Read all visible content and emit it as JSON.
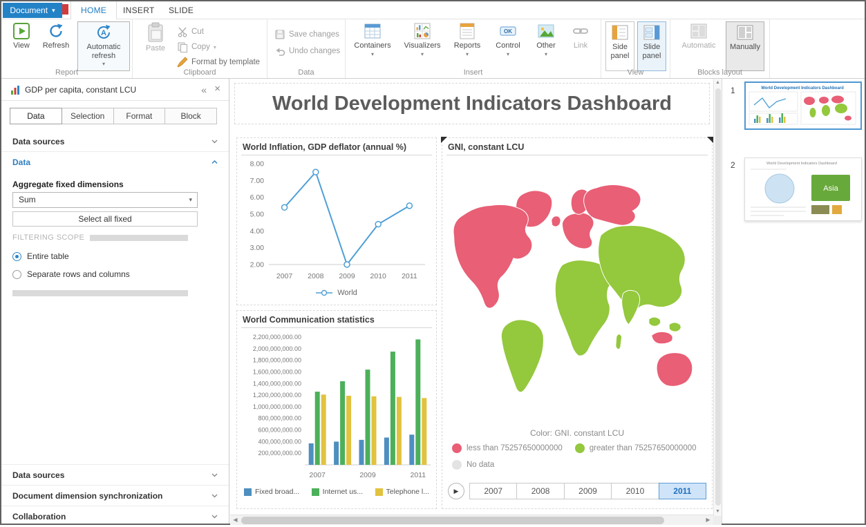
{
  "icons": {
    "dropdown": "▾",
    "collapse": "«",
    "close": "×",
    "play": "▶",
    "scroll_up": "▲",
    "scroll_down": "▼",
    "scroll_left": "◀",
    "scroll_right": "▶"
  },
  "menubar": {
    "document_button": "Document",
    "tabs": [
      {
        "label": "HOME",
        "active": true
      },
      {
        "label": "INSERT",
        "active": false
      },
      {
        "label": "SLIDE",
        "active": false
      }
    ]
  },
  "ribbon": {
    "groups": {
      "report": {
        "label": "Report",
        "view": "View",
        "refresh": "Refresh",
        "automatic_refresh": "Automatic refresh"
      },
      "clipboard": {
        "label": "Clipboard",
        "paste": "Paste",
        "cut": "Cut",
        "copy": "Copy",
        "format_by_template": "Format by template"
      },
      "data": {
        "label": "Data",
        "save_changes": "Save changes",
        "undo_changes": "Undo changes"
      },
      "insert": {
        "label": "Insert",
        "containers": "Containers",
        "visualizers": "Visualizers",
        "reports": "Reports",
        "control": "Control",
        "other": "Other",
        "link": "Link"
      },
      "view": {
        "label": "View",
        "side_panel": "Side panel",
        "slide_panel": "Slide panel"
      },
      "blocks_layout": {
        "label": "Blocks layout",
        "automatic": "Automatic",
        "manually": "Manually"
      }
    }
  },
  "sidebar": {
    "title": "GDP per capita, constant LCU",
    "tabs": [
      {
        "label": "Data",
        "active": true
      },
      {
        "label": "Selection",
        "active": false
      },
      {
        "label": "Format",
        "active": false
      },
      {
        "label": "Block",
        "active": false
      }
    ],
    "data_sources_top": "Data sources",
    "data_section": "Data",
    "aggregate_label": "Aggregate fixed dimensions",
    "aggregate_value": "Sum",
    "select_all_fixed": "Select all fixed",
    "filtering_scope": "FILTERING SCOPE",
    "radio_entire_table": "Entire table",
    "radio_separate": "Separate rows and columns",
    "data_sources_bottom": "Data sources",
    "document_dimension_sync": "Document dimension synchronization",
    "collaboration": "Collaboration"
  },
  "main": {
    "title": "World Development Indicators Dashboard"
  },
  "slides": [
    {
      "number": "1",
      "selected": true
    },
    {
      "number": "2",
      "selected": false,
      "label": "Asia"
    }
  ],
  "colors": {
    "accent_blue": "#1f7dc2",
    "map_less": "#e85f76",
    "map_greater": "#94c83d",
    "map_nodata": "#e3e3e3",
    "line_blue": "#4e9fd6",
    "bar_blue": "#4e8fc0",
    "bar_green": "#4cb05a",
    "bar_yellow": "#e2c23f"
  },
  "chart_data": [
    {
      "type": "line",
      "title": "World Inflation, GDP deflator (annual %)",
      "x": [
        "2007",
        "2008",
        "2009",
        "2010",
        "2011"
      ],
      "series": [
        {
          "name": "World",
          "color": "#4e9fd6",
          "values": [
            5.4,
            7.5,
            2.0,
            4.4,
            5.5
          ]
        }
      ],
      "ylim": [
        2,
        8
      ],
      "ytick_step": 1,
      "grid": false,
      "legend_position": "bottom"
    },
    {
      "type": "bar",
      "title": "World Communication statistics",
      "categories": [
        "2007",
        "2008",
        "2009",
        "2010",
        "2011"
      ],
      "visible_x_labels": [
        "2007",
        "2009",
        "2011"
      ],
      "series": [
        {
          "name": "Fixed broad...",
          "color": "#4e8fc0",
          "values": [
            370000000,
            400000000,
            430000000,
            470000000,
            520000000
          ]
        },
        {
          "name": "Internet us...",
          "color": "#4cb05a",
          "values": [
            1260000000,
            1440000000,
            1640000000,
            1950000000,
            2160000000
          ]
        },
        {
          "name": "Telephone l...",
          "color": "#e2c23f",
          "values": [
            1210000000,
            1190000000,
            1180000000,
            1170000000,
            1150000000
          ]
        }
      ],
      "ylim": [
        0,
        2260000000
      ],
      "yticks_from": 200000000,
      "yticks_to": 2200000000,
      "ytick_step": 200000000,
      "legend_position": "bottom"
    },
    {
      "type": "choropleth",
      "title": "GNI, constant LCU",
      "caption": "Color: GNI. constant LCU",
      "legend": [
        {
          "label": "less than 75257650000000",
          "bucket": "less",
          "color": "#e85f76"
        },
        {
          "label": "greater than 75257650000000",
          "bucket": "greater",
          "color": "#94c83d"
        },
        {
          "label": "No data",
          "bucket": "nodata",
          "color": "#e3e3e3"
        }
      ],
      "regions": {
        "north-america": "less",
        "greenland": "less",
        "south-america": "greater",
        "europe": "less",
        "scandinavia": "less",
        "british-isles": "less",
        "africa": "greater",
        "madagascar": "greater",
        "russia": "less",
        "east-asia": "greater",
        "india": "greater",
        "southeast-asia": "greater",
        "indonesia": "less",
        "australia": "less"
      },
      "timeline": {
        "years": [
          "2007",
          "2008",
          "2009",
          "2010",
          "2011"
        ],
        "selected_year": "2011"
      }
    }
  ]
}
